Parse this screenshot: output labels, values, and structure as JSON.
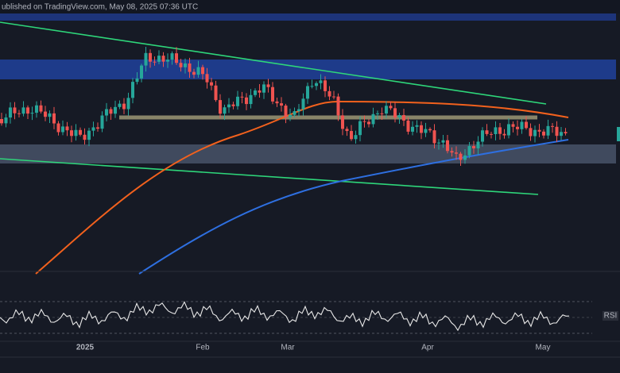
{
  "header": {
    "published": "ublished on TradingView.com, May 08, 2025 07:36 UTC"
  },
  "time_axis": {
    "labels": [
      "2025",
      "Feb",
      "Mar",
      "Apr",
      "May"
    ]
  },
  "rsi_pane": {
    "label": "RSI"
  }
}
